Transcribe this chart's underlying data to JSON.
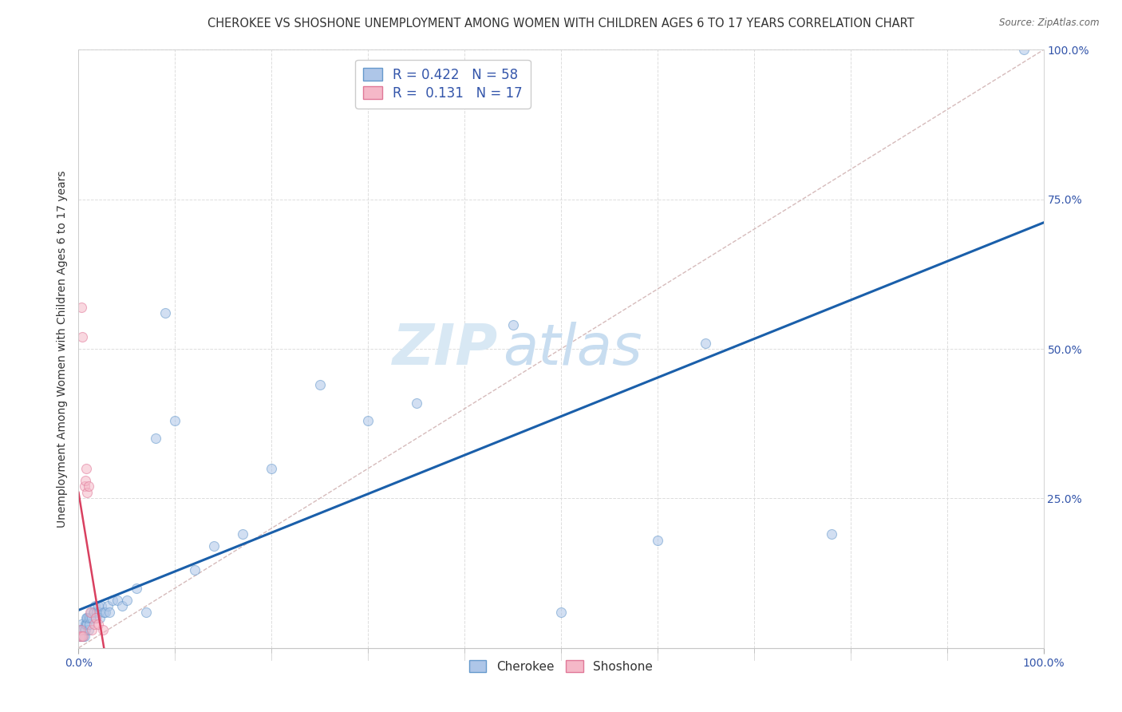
{
  "title": "CHEROKEE VS SHOSHONE UNEMPLOYMENT AMONG WOMEN WITH CHILDREN AGES 6 TO 17 YEARS CORRELATION CHART",
  "source": "Source: ZipAtlas.com",
  "ylabel": "Unemployment Among Women with Children Ages 6 to 17 years",
  "cherokee_R": 0.422,
  "cherokee_N": 58,
  "shoshone_R": 0.131,
  "shoshone_N": 17,
  "cherokee_color": "#aec6e8",
  "cherokee_edge": "#6699cc",
  "shoshone_color": "#f5b8c8",
  "shoshone_edge": "#e07898",
  "reg_cherokee_color": "#1a5faa",
  "reg_shoshone_color": "#d94060",
  "diagonal_color": "#ccaaaa",
  "background_color": "#ffffff",
  "watermark_color": "#d8e8f4",
  "xlim": [
    0,
    1
  ],
  "ylim": [
    0,
    1
  ],
  "xtick_minor_positions": [
    0.1,
    0.2,
    0.3,
    0.4,
    0.5,
    0.6,
    0.7,
    0.8,
    0.9
  ],
  "yticks": [
    0.0,
    0.25,
    0.5,
    0.75,
    1.0
  ],
  "yticklabels_right": [
    "",
    "25.0%",
    "50.0%",
    "75.0%",
    "100.0%"
  ],
  "cherokee_x": [
    0.001,
    0.002,
    0.002,
    0.003,
    0.003,
    0.004,
    0.004,
    0.005,
    0.005,
    0.006,
    0.006,
    0.007,
    0.007,
    0.008,
    0.008,
    0.009,
    0.009,
    0.01,
    0.01,
    0.011,
    0.012,
    0.013,
    0.014,
    0.015,
    0.016,
    0.017,
    0.018,
    0.019,
    0.02,
    0.021,
    0.022,
    0.024,
    0.026,
    0.028,
    0.03,
    0.032,
    0.035,
    0.04,
    0.045,
    0.05,
    0.06,
    0.07,
    0.08,
    0.09,
    0.1,
    0.12,
    0.14,
    0.17,
    0.2,
    0.25,
    0.3,
    0.35,
    0.45,
    0.5,
    0.6,
    0.65,
    0.78,
    0.98
  ],
  "cherokee_y": [
    0.02,
    0.02,
    0.03,
    0.03,
    0.04,
    0.02,
    0.03,
    0.02,
    0.03,
    0.02,
    0.03,
    0.03,
    0.04,
    0.04,
    0.05,
    0.04,
    0.05,
    0.03,
    0.05,
    0.04,
    0.05,
    0.06,
    0.05,
    0.06,
    0.06,
    0.07,
    0.05,
    0.06,
    0.07,
    0.06,
    0.05,
    0.07,
    0.06,
    0.06,
    0.07,
    0.06,
    0.08,
    0.08,
    0.07,
    0.08,
    0.1,
    0.06,
    0.35,
    0.56,
    0.38,
    0.13,
    0.17,
    0.19,
    0.3,
    0.44,
    0.38,
    0.41,
    0.54,
    0.06,
    0.18,
    0.51,
    0.19,
    1.0
  ],
  "shoshone_x": [
    0.001,
    0.002,
    0.003,
    0.003,
    0.004,
    0.005,
    0.006,
    0.007,
    0.008,
    0.009,
    0.01,
    0.012,
    0.014,
    0.016,
    0.018,
    0.02,
    0.025
  ],
  "shoshone_y": [
    0.02,
    0.03,
    0.57,
    0.02,
    0.52,
    0.02,
    0.27,
    0.28,
    0.3,
    0.26,
    0.27,
    0.06,
    0.03,
    0.04,
    0.05,
    0.04,
    0.03
  ],
  "marker_size": 75,
  "marker_alpha": 0.55,
  "title_fontsize": 10.5,
  "axis_label_fontsize": 10,
  "tick_fontsize": 10,
  "legend_fontsize": 12
}
